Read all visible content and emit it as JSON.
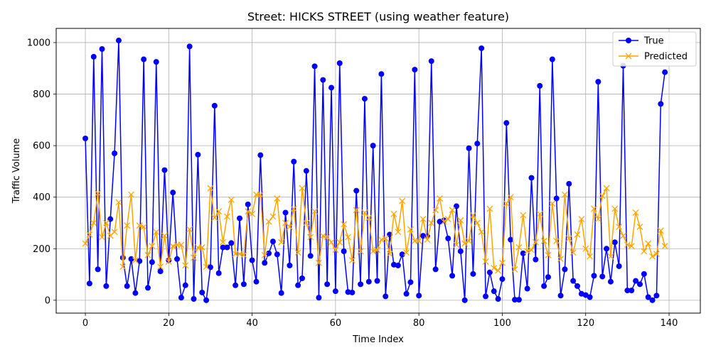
{
  "chart_data": {
    "type": "line",
    "title": "Street: HICKS STREET (using weather feature)",
    "xlabel": "Time Index",
    "ylabel": "Traffic Volume",
    "xlim": [
      -7,
      147.5
    ],
    "ylim": [
      -50,
      1055
    ],
    "xticks": [
      0,
      20,
      40,
      60,
      80,
      100,
      120,
      140
    ],
    "yticks": [
      0,
      200,
      400,
      600,
      800,
      1000
    ],
    "grid": true,
    "legend_position": "top-right",
    "series": [
      {
        "name": "True",
        "color": "#0000ff",
        "marker": "circle",
        "values": [
          628,
          65,
          945,
          120,
          975,
          55,
          315,
          570,
          1008,
          165,
          55,
          160,
          28,
          152,
          935,
          48,
          148,
          925,
          112,
          505,
          155,
          418,
          160,
          10,
          58,
          985,
          5,
          565,
          30,
          0,
          128,
          755,
          105,
          205,
          205,
          222,
          58,
          318,
          62,
          372,
          155,
          72,
          563,
          145,
          182,
          228,
          178,
          28,
          340,
          135,
          538,
          58,
          85,
          502,
          172,
          908,
          10,
          855,
          62,
          825,
          35,
          920,
          190,
          32,
          30,
          425,
          62,
          782,
          72,
          600,
          75,
          878,
          15,
          255,
          138,
          135,
          178,
          25,
          70,
          895,
          18,
          250,
          248,
          928,
          120,
          305,
          310,
          240,
          95,
          365,
          190,
          0,
          590,
          102,
          608,
          978,
          15,
          108,
          35,
          5,
          82,
          688,
          235,
          2,
          2,
          182,
          45,
          475,
          158,
          832,
          55,
          90,
          935,
          395,
          18,
          120,
          452,
          75,
          55,
          25,
          20,
          12,
          95,
          848,
          92,
          200,
          72,
          225,
          132,
          910,
          38,
          38,
          75,
          62,
          102,
          12,
          0,
          18,
          762,
          885
        ]
      },
      {
        "name": "Predicted",
        "color": "#ffa500",
        "marker": "x",
        "values": [
          220,
          255,
          300,
          415,
          245,
          300,
          250,
          265,
          380,
          130,
          290,
          410,
          155,
          290,
          285,
          175,
          210,
          265,
          130,
          250,
          150,
          210,
          215,
          215,
          135,
          275,
          165,
          205,
          205,
          130,
          435,
          320,
          345,
          225,
          325,
          390,
          180,
          180,
          175,
          345,
          335,
          410,
          410,
          175,
          305,
          325,
          395,
          225,
          300,
          285,
          355,
          185,
          435,
          300,
          245,
          345,
          145,
          250,
          245,
          225,
          195,
          225,
          295,
          245,
          155,
          350,
          190,
          340,
          320,
          190,
          195,
          235,
          240,
          180,
          335,
          265,
          385,
          185,
          275,
          230,
          230,
          315,
          235,
          300,
          350,
          395,
          305,
          315,
          350,
          215,
          310,
          220,
          230,
          330,
          300,
          265,
          150,
          355,
          125,
          115,
          145,
          375,
          400,
          120,
          205,
          330,
          190,
          195,
          225,
          335,
          230,
          175,
          375,
          230,
          160,
          410,
          240,
          185,
          255,
          315,
          200,
          170,
          355,
          315,
          405,
          435,
          170,
          355,
          285,
          250,
          215,
          210,
          340,
          285,
          190,
          220,
          170,
          180,
          270,
          210
        ]
      }
    ]
  }
}
